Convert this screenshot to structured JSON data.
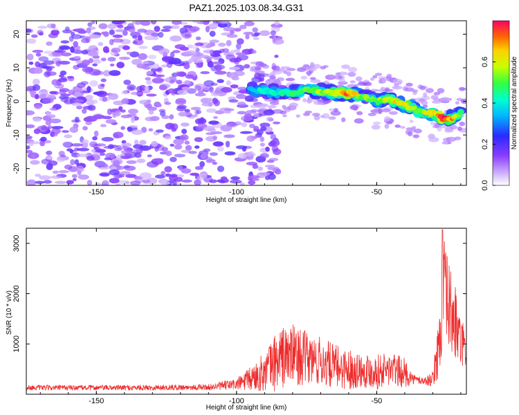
{
  "figure_title": "PAZ1.2025.103.08.34.G31",
  "colors": {
    "snr_line": "#ee2b2b",
    "axis": "#000000",
    "background": "#ffffff"
  },
  "chart_data": [
    {
      "type": "heatmap",
      "title": "PAZ1.2025.103.08.34.G31",
      "xlabel": "Height of straight line (km)",
      "ylabel": "Frequency (Hz)",
      "xlim": [
        -175,
        -18
      ],
      "ylim": [
        -25,
        24
      ],
      "xticks": [
        -150,
        -100,
        -50
      ],
      "yticks": [
        -20,
        -10,
        0,
        10,
        20
      ],
      "noise_region": {
        "x_range": [
          -175,
          -93
        ],
        "freq_range": [
          -25,
          24
        ],
        "level": 0.15
      },
      "signal_ridge": {
        "x": [
          -95,
          -90,
          -85,
          -80,
          -75,
          -70,
          -65,
          -60,
          -55,
          -50,
          -45,
          -40,
          -35,
          -30,
          -25,
          -20
        ],
        "freq": [
          3.5,
          3.0,
          2.8,
          2.5,
          3.5,
          3.0,
          2.5,
          2.5,
          1.5,
          0.0,
          0.5,
          -1.0,
          -3.0,
          -3.5,
          -5.5,
          -3.5
        ],
        "amplitude": [
          0.35,
          0.4,
          0.38,
          0.42,
          0.45,
          0.5,
          0.55,
          0.65,
          0.5,
          0.48,
          0.55,
          0.6,
          0.5,
          0.58,
          0.72,
          0.45
        ]
      },
      "colorbar": {
        "label": "Normalized spectral amplitude",
        "range": [
          0.0,
          0.8
        ],
        "ticks": [
          "0.0",
          "0.2",
          "0.4",
          "0.6"
        ],
        "tick_values": [
          0.0,
          0.2,
          0.4,
          0.6
        ]
      }
    },
    {
      "type": "line",
      "title": "",
      "xlabel": "Height of straight line (km)",
      "ylabel": "SNR (10 * v/v)",
      "xlim": [
        -175,
        -18
      ],
      "ylim": [
        0,
        3300
      ],
      "xticks": [
        -150,
        -100,
        -50
      ],
      "yticks": [
        1000,
        2000,
        3000
      ],
      "series": [
        {
          "name": "SNR",
          "envelope": {
            "x": [
              -175,
              -140,
              -110,
              -100,
              -95,
              -90,
              -85,
              -80,
              -75,
              -70,
              -65,
              -60,
              -55,
              -50,
              -45,
              -40,
              -37,
              -33,
              -30,
              -28,
              -26,
              -24,
              -22,
              -20,
              -18
            ],
            "mean": [
              130,
              130,
              140,
              200,
              300,
              450,
              700,
              800,
              700,
              650,
              550,
              500,
              480,
              450,
              500,
              420,
              300,
              260,
              300,
              900,
              2000,
              1700,
              1400,
              1000,
              900
            ],
            "amplitude": [
              50,
              55,
              60,
              120,
              250,
              400,
              650,
              600,
              550,
              500,
              450,
              400,
              350,
              350,
              350,
              300,
              100,
              80,
              150,
              600,
              1100,
              900,
              800,
              500,
              400
            ]
          },
          "peak": {
            "x": -26.5,
            "y": 3270
          }
        }
      ]
    }
  ]
}
